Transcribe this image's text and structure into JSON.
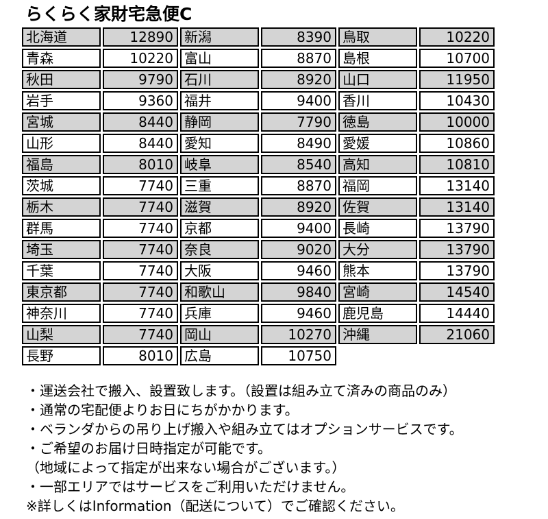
{
  "title": "らくらく家財宅急便C",
  "colors": {
    "row_shaded": "#d4d4d4",
    "row_plain": "#ffffff",
    "cell_border": "#000000",
    "text": "#000000"
  },
  "table": {
    "groups": [
      {
        "rows": [
          {
            "prefecture": "北海道",
            "price": 12890
          },
          {
            "prefecture": "青森",
            "price": 10220
          },
          {
            "prefecture": "秋田",
            "price": 9790
          },
          {
            "prefecture": "岩手",
            "price": 9360
          },
          {
            "prefecture": "宮城",
            "price": 8440
          },
          {
            "prefecture": "山形",
            "price": 8440
          },
          {
            "prefecture": "福島",
            "price": 8010
          },
          {
            "prefecture": "茨城",
            "price": 7740
          },
          {
            "prefecture": "栃木",
            "price": 7740
          },
          {
            "prefecture": "群馬",
            "price": 7740
          },
          {
            "prefecture": "埼玉",
            "price": 7740
          },
          {
            "prefecture": "千葉",
            "price": 7740
          },
          {
            "prefecture": "東京都",
            "price": 7740
          },
          {
            "prefecture": "神奈川",
            "price": 7740
          },
          {
            "prefecture": "山梨",
            "price": 7740
          },
          {
            "prefecture": "長野",
            "price": 8010
          }
        ]
      },
      {
        "rows": [
          {
            "prefecture": "新潟",
            "price": 8390
          },
          {
            "prefecture": "富山",
            "price": 8870
          },
          {
            "prefecture": "石川",
            "price": 8920
          },
          {
            "prefecture": "福井",
            "price": 9400
          },
          {
            "prefecture": "静岡",
            "price": 7790
          },
          {
            "prefecture": "愛知",
            "price": 8490
          },
          {
            "prefecture": "岐阜",
            "price": 8540
          },
          {
            "prefecture": "三重",
            "price": 8870
          },
          {
            "prefecture": "滋賀",
            "price": 8920
          },
          {
            "prefecture": "京都",
            "price": 9400
          },
          {
            "prefecture": "奈良",
            "price": 9020
          },
          {
            "prefecture": "大阪",
            "price": 9460
          },
          {
            "prefecture": "和歌山",
            "price": 9840
          },
          {
            "prefecture": "兵庫",
            "price": 9460
          },
          {
            "prefecture": "岡山",
            "price": 10270
          },
          {
            "prefecture": "広島",
            "price": 10750
          }
        ]
      },
      {
        "rows": [
          {
            "prefecture": "鳥取",
            "price": 10220
          },
          {
            "prefecture": "島根",
            "price": 10700
          },
          {
            "prefecture": "山口",
            "price": 11950
          },
          {
            "prefecture": "香川",
            "price": 10430
          },
          {
            "prefecture": "徳島",
            "price": 10000
          },
          {
            "prefecture": "愛媛",
            "price": 10860
          },
          {
            "prefecture": "高知",
            "price": 10810
          },
          {
            "prefecture": "福岡",
            "price": 13140
          },
          {
            "prefecture": "佐賀",
            "price": 13140
          },
          {
            "prefecture": "長崎",
            "price": 13790
          },
          {
            "prefecture": "大分",
            "price": 13790
          },
          {
            "prefecture": "熊本",
            "price": 13790
          },
          {
            "prefecture": "宮崎",
            "price": 14540
          },
          {
            "prefecture": "鹿児島",
            "price": 14440
          },
          {
            "prefecture": "沖縄",
            "price": 21060
          }
        ]
      }
    ]
  },
  "notes": [
    "・運送会社で搬入、設置致します。（設置は組み立て済みの商品のみ）",
    "・通常の宅配便よりお日にちがかかります。",
    "・ベランダからの吊り上げ搬入や組み立てはオプションサービスです。",
    "・ご希望のお届け日時指定が可能です。",
    "（地域によって指定が出来ない場合がございます。）",
    "・一部エリアではサービスをご利用いただけません。",
    "※詳しくはInformation（配送について）でご確認ください。"
  ]
}
